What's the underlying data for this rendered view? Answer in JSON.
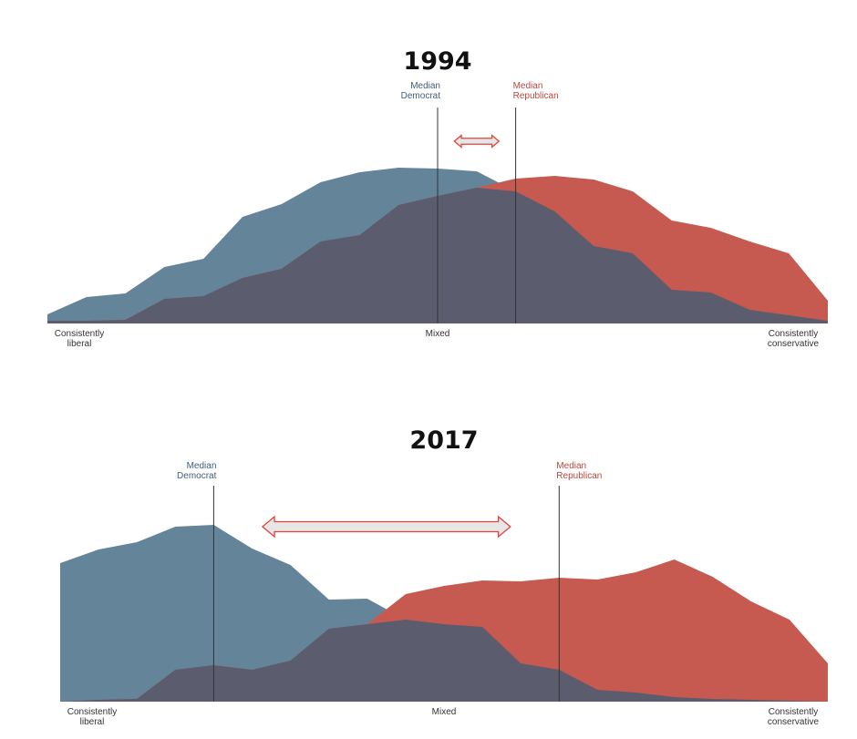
{
  "chart_data": [
    {
      "type": "area",
      "title": "1994",
      "x": [
        0,
        1,
        2,
        3,
        4,
        5,
        6,
        7,
        8,
        9,
        10,
        11,
        12,
        13,
        14,
        15,
        16,
        17,
        18,
        19,
        20
      ],
      "xlim": [
        0,
        20
      ],
      "ylim": [
        0,
        200
      ],
      "xticks": [
        {
          "value": 0,
          "label": "Consistently liberal"
        },
        {
          "value": 10,
          "label": "Mixed"
        },
        {
          "value": 20,
          "label": "Consistently conservative"
        }
      ],
      "series": [
        {
          "name": "Democrat",
          "color": "#64849a",
          "values": [
            10,
            29,
            33,
            62,
            71,
            117,
            131,
            155,
            166,
            171,
            170,
            167,
            145,
            123,
            85,
            77,
            37,
            34,
            15,
            9,
            3
          ]
        },
        {
          "name": "Republican",
          "color": "#c65a50",
          "values": [
            3,
            3,
            4,
            27,
            30,
            50,
            60,
            90,
            97,
            130,
            140,
            149,
            159,
            162,
            158,
            145,
            113,
            105,
            90,
            77,
            25
          ]
        }
      ],
      "overlap_color": "#5b5c6d",
      "annotations": [
        {
          "text": "Median Democrat",
          "x": 10,
          "color": "#3f5f7b"
        },
        {
          "text": "Median Republican",
          "x": 12,
          "color": "#b9473d"
        }
      ]
    },
    {
      "type": "area",
      "title": "2017",
      "x": [
        0,
        1,
        2,
        3,
        4,
        5,
        6,
        7,
        8,
        9,
        10,
        11,
        12,
        13,
        14,
        15,
        16,
        17,
        18,
        19,
        20
      ],
      "xlim": [
        0,
        20
      ],
      "ylim": [
        0,
        200
      ],
      "xticks": [
        {
          "value": 0,
          "label": "Consistently liberal"
        },
        {
          "value": 10,
          "label": "Mixed"
        },
        {
          "value": 20,
          "label": "Consistently conservative"
        }
      ],
      "series": [
        {
          "name": "Democrat",
          "color": "#64849a",
          "values": [
            152,
            167,
            175,
            192,
            194,
            168,
            150,
            112,
            113,
            90,
            85,
            82,
            42,
            35,
            13,
            10,
            5,
            3,
            2,
            1,
            0
          ]
        },
        {
          "name": "Republican",
          "color": "#c65a50",
          "values": [
            0,
            2,
            3,
            35,
            40,
            35,
            45,
            80,
            85,
            118,
            127,
            133,
            132,
            136,
            134,
            142,
            156,
            137,
            110,
            90,
            42
          ]
        }
      ],
      "overlap_color": "#5b5c6d",
      "annotations": [
        {
          "text": "Median Democrat",
          "x": 4,
          "color": "#3f5f7b"
        },
        {
          "text": "Median Republican",
          "x": 13,
          "color": "#b9473d"
        }
      ]
    }
  ]
}
